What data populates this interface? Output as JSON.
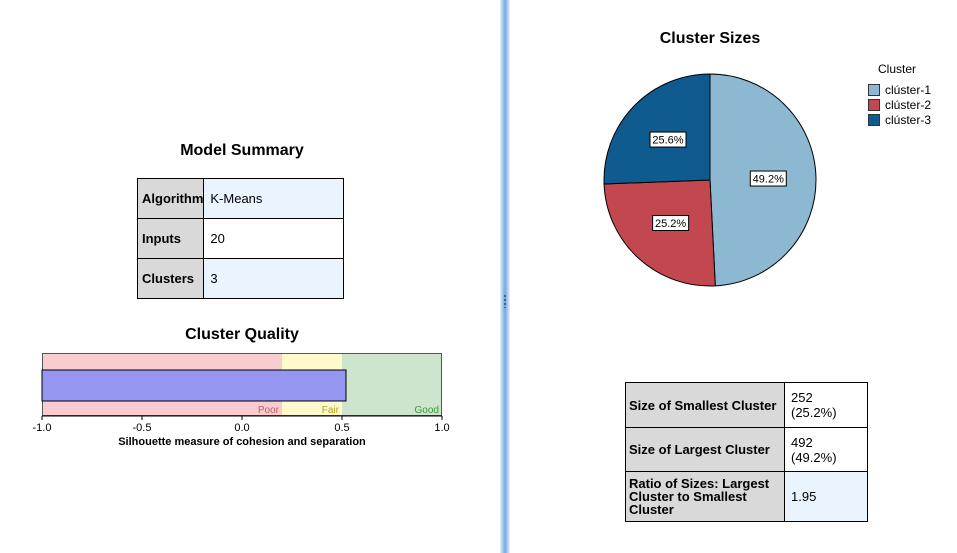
{
  "model_summary": {
    "title": "Model Summary",
    "rows": [
      {
        "label": "Algorithm",
        "value": "K-Means"
      },
      {
        "label": "Inputs",
        "value": "20"
      },
      {
        "label": "Clusters",
        "value": "3"
      }
    ]
  },
  "cluster_quality": {
    "title": "Cluster Quality",
    "xlabel": "Silhouette measure of cohesion and separation",
    "band_labels": [
      "Poor",
      "Fair",
      "Good"
    ],
    "band_colors": [
      "#f9cdd0",
      "#fefacb",
      "#cde5cc"
    ],
    "band_label_colors": [
      "#c25a66",
      "#b2a028",
      "#3a9a3a"
    ],
    "bar_color": "#9496f2"
  },
  "cluster_sizes": {
    "title": "Cluster Sizes",
    "legend_title": "Cluster"
  },
  "size_stats": {
    "rows": [
      {
        "label": "Size of Smallest Cluster",
        "value": "252 (25.2%)"
      },
      {
        "label": "Size of Largest Cluster",
        "value": "492 (49.2%)"
      },
      {
        "label": "Ratio of Sizes: Largest Cluster to Smallest Cluster",
        "value": "1.95"
      }
    ]
  },
  "chart_data": [
    {
      "type": "bar",
      "title": "Cluster Quality",
      "xlabel": "Silhouette measure of cohesion and separation",
      "xlim": [
        -1.0,
        1.0
      ],
      "ticks": [
        "-1.0",
        "-0.5",
        "0.0",
        "0.5",
        "1.0"
      ],
      "bands": [
        {
          "name": "Poor",
          "from": -1.0,
          "to": 0.2
        },
        {
          "name": "Fair",
          "from": 0.2,
          "to": 0.5
        },
        {
          "name": "Good",
          "from": 0.5,
          "to": 1.0
        }
      ],
      "values": [
        0.52
      ]
    },
    {
      "type": "pie",
      "title": "Cluster Sizes",
      "legend_title": "Cluster",
      "legend_position": "top-right",
      "slices": [
        {
          "name": "clúster-1",
          "value": 49.2,
          "label": "49.2%",
          "color": "#8db8d2"
        },
        {
          "name": "clúster-2",
          "value": 25.2,
          "label": "25.2%",
          "color": "#c2474f"
        },
        {
          "name": "clúster-3",
          "value": 25.6,
          "label": "25.6%",
          "color": "#0f5a8f"
        }
      ]
    }
  ]
}
